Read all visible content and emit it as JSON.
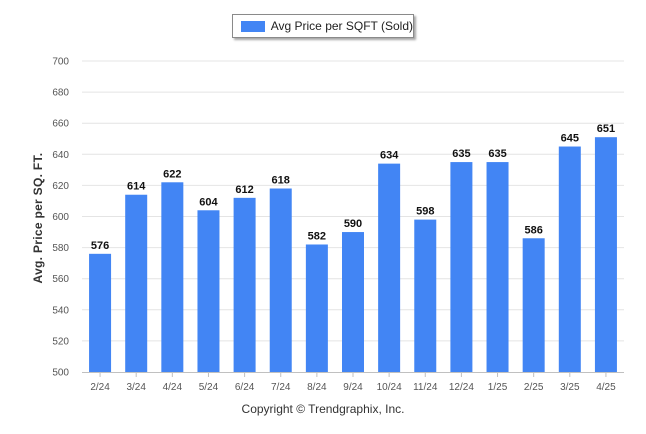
{
  "chart_data": {
    "type": "bar",
    "categories": [
      "2/24",
      "3/24",
      "4/24",
      "5/24",
      "6/24",
      "7/24",
      "8/24",
      "9/24",
      "10/24",
      "11/24",
      "12/24",
      "1/25",
      "2/25",
      "3/25",
      "4/25"
    ],
    "series": [
      {
        "name": "Avg Price per SQFT (Sold)",
        "values": [
          576,
          614,
          622,
          604,
          612,
          618,
          582,
          590,
          634,
          598,
          635,
          635,
          586,
          645,
          651
        ],
        "color": "#4285f4"
      }
    ],
    "ylabel": "Avg. Price per SQ. FT.",
    "xlabel": "",
    "ylim": [
      500,
      700
    ],
    "yticks": [
      500,
      520,
      540,
      560,
      580,
      600,
      620,
      640,
      660,
      680,
      700
    ],
    "grid": true,
    "legend_position": "top-center"
  },
  "footer": {
    "copyright": "Copyright © Trendgraphix, Inc."
  }
}
